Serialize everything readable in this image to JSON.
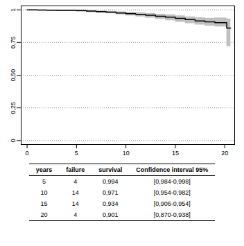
{
  "chart_data": {
    "type": "line",
    "line_style": "step",
    "color": "#000000",
    "grid": true,
    "x": [
      0,
      1,
      2,
      3,
      5,
      6,
      7,
      8,
      9,
      10,
      11,
      12,
      13,
      14,
      15,
      16,
      17,
      18,
      19,
      20.2,
      20.6
    ],
    "values": [
      1,
      0.998,
      0.997,
      0.996,
      0.994,
      0.99,
      0.986,
      0.982,
      0.976,
      0.971,
      0.965,
      0.958,
      0.951,
      0.944,
      0.934,
      0.925,
      0.915,
      0.908,
      0.901,
      0.86,
      0.86
    ],
    "lower": [
      1,
      0.992,
      0.99,
      0.988,
      0.984,
      0.98,
      0.975,
      0.97,
      0.963,
      0.954,
      0.946,
      0.937,
      0.928,
      0.918,
      0.906,
      0.895,
      0.884,
      0.876,
      0.87,
      0.72,
      0.72
    ],
    "upper": [
      1,
      1,
      0.999,
      0.999,
      0.998,
      0.995,
      0.992,
      0.989,
      0.985,
      0.982,
      0.978,
      0.972,
      0.967,
      0.962,
      0.954,
      0.947,
      0.94,
      0.936,
      0.938,
      0.93,
      0.93
    ],
    "xlim": [
      -0.6,
      21
    ],
    "xticks": [
      0,
      5,
      10,
      15,
      20
    ],
    "ylim": [
      -0.03,
      1.03
    ],
    "yticks": [
      0,
      {
        "value": 0.25,
        "label": "0,25"
      },
      {
        "value": 0.5,
        "label": "0,50"
      },
      {
        "value": 0.75,
        "label": "0,75"
      },
      1
    ]
  },
  "table": {
    "columns": [
      "years",
      "failure",
      "survival",
      "Confidence interval 95%"
    ],
    "rows": [
      [
        "5",
        "4",
        "0,994",
        "[0,984-0,998]"
      ],
      [
        "10",
        "14",
        "0,971",
        "[0,954-0,982]"
      ],
      [
        "15",
        "14",
        "0,934",
        "[0,906-0,954]"
      ],
      [
        "20",
        "4",
        "0,901",
        "[0,870-0,938]"
      ]
    ]
  }
}
